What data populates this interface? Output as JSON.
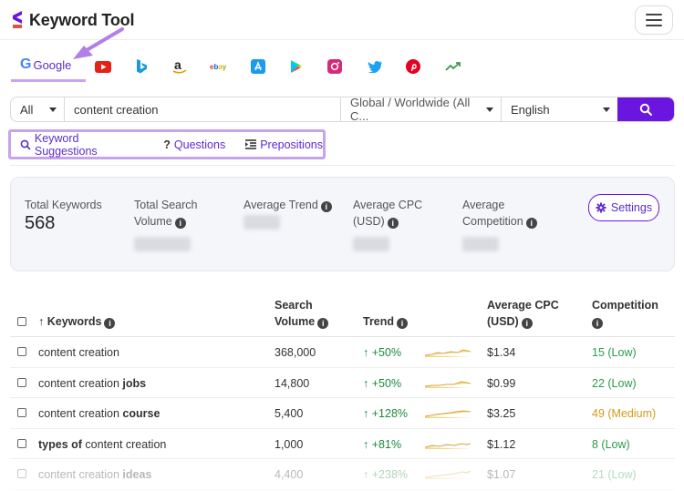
{
  "header": {
    "logo_text": "Keyword Tool"
  },
  "engines": {
    "active_label": "Google",
    "items": [
      "google",
      "youtube",
      "bing",
      "amazon",
      "ebay",
      "app-store",
      "play-store",
      "instagram",
      "twitter",
      "pinterest",
      "trends"
    ]
  },
  "search": {
    "scope_value": "All",
    "query_value": "content creation",
    "location_value": "Global / Worldwide (All C...",
    "language_value": "English"
  },
  "tabs": [
    {
      "label": "Keyword Suggestions"
    },
    {
      "label": "Questions"
    },
    {
      "label": "Prepositions"
    }
  ],
  "stats": {
    "total_keywords_label": "Total Keywords",
    "total_keywords_value": "568",
    "total_volume_label_1": "Total Search",
    "total_volume_label_2": "Volume",
    "average_trend_label": "Average Trend",
    "average_cpc_label_1": "Average CPC",
    "average_cpc_label_2": "(USD)",
    "average_competition_label_1": "Average",
    "average_competition_label_2": "Competition",
    "settings_label": "Settings"
  },
  "table": {
    "headers": {
      "keywords": "Keywords",
      "volume_1": "Search",
      "volume_2": "Volume",
      "trend": "Trend",
      "cpc_1": "Average CPC",
      "cpc_2": "(USD)",
      "competition": "Competition"
    },
    "rows": [
      {
        "kw_pre": "content creation",
        "kw_bold": "",
        "kw_post": "",
        "volume": "368,000",
        "trend": "+50%",
        "cpc": "$1.34",
        "competition": "15 (Low)",
        "level": "low"
      },
      {
        "kw_pre": "content creation ",
        "kw_bold": "jobs",
        "kw_post": "",
        "volume": "14,800",
        "trend": "+50%",
        "cpc": "$0.99",
        "competition": "22 (Low)",
        "level": "low"
      },
      {
        "kw_pre": "content creation ",
        "kw_bold": "course",
        "kw_post": "",
        "volume": "5,400",
        "trend": "+128%",
        "cpc": "$3.25",
        "competition": "49 (Medium)",
        "level": "med"
      },
      {
        "kw_pre": "",
        "kw_bold": "types of",
        "kw_post": " content creation",
        "volume": "1,000",
        "trend": "+81%",
        "cpc": "$1.12",
        "competition": "8 (Low)",
        "level": "low"
      },
      {
        "kw_pre": "content creation ",
        "kw_bold": "ideas",
        "kw_post": "",
        "volume": "4,400",
        "trend": "+238%",
        "cpc": "$1.07",
        "competition": "21 (Low)",
        "level": "low"
      }
    ]
  },
  "colors": {
    "accent": "#6b15e0",
    "highlight": "#c7a3ec",
    "trend_up": "#1a8a3a",
    "low": "#2a9a4a",
    "medium": "#d49b1a"
  }
}
